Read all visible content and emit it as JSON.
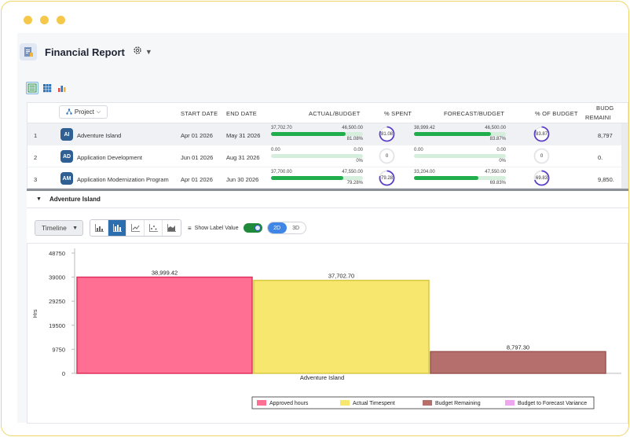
{
  "app": {
    "title": "Financial Report"
  },
  "grid": {
    "columns": {
      "project": "Project",
      "start": "START DATE",
      "end": "END DATE",
      "actual": "ACTUAL/BUDGET",
      "spent": "% SPENT",
      "forecast": "FORECAST/BUDGET",
      "ofbudget": "% OF BUDGET",
      "remaining1": "BUDG",
      "remaining2": "REMAINI"
    },
    "rows": [
      {
        "num": "1",
        "initials": "AI",
        "name": "Adventure Island",
        "start": "Apr 01 2026",
        "end": "May 31 2026",
        "actual_val": "37,702.70",
        "actual_budget": "46,500.00",
        "actual_pct": "81.08%",
        "actual_fill": 0.81,
        "spent": "81.08",
        "spent_fill": 0.81,
        "fc_val": "38,999.42",
        "fc_budget": "46,500.00",
        "fc_pct": "83.87%",
        "fc_fill": 0.84,
        "ofbudget": "83.87",
        "ofbudget_fill": 0.84,
        "remaining": "8,797"
      },
      {
        "num": "2",
        "initials": "AD",
        "name": "Application Development",
        "start": "Jun 01 2026",
        "end": "Aug 31 2026",
        "actual_val": "0.00",
        "actual_budget": "0.00",
        "actual_pct": "0%",
        "actual_fill": 0,
        "spent": "0",
        "spent_fill": 0,
        "fc_val": "0.00",
        "fc_budget": "0.00",
        "fc_pct": "0%",
        "fc_fill": 0,
        "ofbudget": "0",
        "ofbudget_fill": 0,
        "remaining": "0."
      },
      {
        "num": "3",
        "initials": "AM",
        "name": "Application Modernization Program",
        "start": "Apr 01 2026",
        "end": "Jun 30 2026",
        "actual_val": "37,700.00",
        "actual_budget": "47,550.00",
        "actual_pct": "79.28%",
        "actual_fill": 0.79,
        "spent": "79.28",
        "spent_fill": 0.79,
        "fc_val": "33,204.00",
        "fc_budget": "47,550.00",
        "fc_pct": "69.83%",
        "fc_fill": 0.7,
        "ofbudget": "69.83",
        "ofbudget_fill": 0.7,
        "remaining": "9,850."
      }
    ]
  },
  "detail": {
    "title": "Adventure Island",
    "timeline": "Timeline",
    "show_label": "Show Label Value",
    "dim_2d": "2D",
    "dim_3d": "3D"
  },
  "colors": {
    "approved": "#ff6e93",
    "actual": "#f7e76f",
    "remaining": "#b5706e",
    "variance": "#eea6f0",
    "progress": "#1fae4b",
    "ring": "#5b3fc4"
  },
  "chart_data": {
    "type": "bar",
    "categories": [
      "Adventure Island"
    ],
    "series": [
      {
        "name": "Approved hours",
        "values": [
          38999.42
        ]
      },
      {
        "name": "Actual Timespent",
        "values": [
          37702.7
        ]
      },
      {
        "name": "Budget Remaining",
        "values": [
          8797.3
        ]
      },
      {
        "name": "Budget to Forecast Variance",
        "values": [
          0
        ]
      }
    ],
    "value_labels": [
      "38,999.42",
      "37,702.70",
      "8,797.30",
      ""
    ],
    "ylabel": "Hrs",
    "yticks": [
      "48750",
      "39000",
      "29250",
      "19500",
      "9750",
      "0"
    ],
    "ylim": [
      0,
      48750
    ],
    "legend": "bottom"
  }
}
